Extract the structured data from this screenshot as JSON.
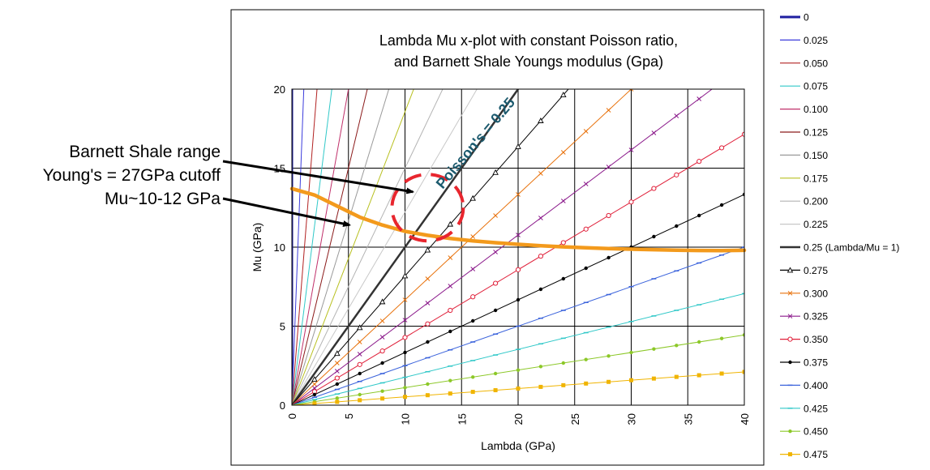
{
  "chart_data": {
    "type": "line",
    "title_lines": [
      "Lambda Mu x-plot with constant Poisson ratio,",
      "and Barnett Shale Youngs modulus (Gpa)"
    ],
    "xlabel": "Lambda (GPa)",
    "ylabel": "Mu (GPa)",
    "xlim": [
      0,
      40
    ],
    "ylim": [
      0,
      20
    ],
    "xticks": [
      0,
      5,
      10,
      15,
      20,
      25,
      30,
      35,
      40
    ],
    "yticks": [
      0,
      5,
      10,
      15,
      20
    ],
    "x_step": 2,
    "grid": true,
    "legend_position": "right",
    "series": [
      {
        "name": "0",
        "poisson": 0.0,
        "color": "#1f1fa0",
        "marker": "none",
        "width": 3
      },
      {
        "name": "0.025",
        "poisson": 0.025,
        "color": "#3c3cdc",
        "marker": "none",
        "width": 1
      },
      {
        "name": "0.050",
        "poisson": 0.05,
        "color": "#b22222",
        "marker": "none",
        "width": 1
      },
      {
        "name": "0.075",
        "poisson": 0.075,
        "color": "#30c8c8",
        "marker": "none",
        "width": 1
      },
      {
        "name": "0.100",
        "poisson": 0.1,
        "color": "#c0306a",
        "marker": "none",
        "width": 1
      },
      {
        "name": "0.125",
        "poisson": 0.125,
        "color": "#8b1a1a",
        "marker": "none",
        "width": 1
      },
      {
        "name": "0.150",
        "poisson": 0.15,
        "color": "#9a9a9a",
        "marker": "none",
        "width": 1
      },
      {
        "name": "0.175",
        "poisson": 0.175,
        "color": "#b8c020",
        "marker": "none",
        "width": 1
      },
      {
        "name": "0.200",
        "poisson": 0.2,
        "color": "#b4b4b4",
        "marker": "none",
        "width": 1
      },
      {
        "name": "0.225",
        "poisson": 0.225,
        "color": "#c8c8c8",
        "marker": "none",
        "width": 1
      },
      {
        "name": "0.25 (Lambda/Mu = 1)",
        "poisson": 0.25,
        "color": "#333333",
        "marker": "none",
        "width": 2.5
      },
      {
        "name": "0.275",
        "poisson": 0.275,
        "color": "#000000",
        "marker": "triangle",
        "width": 1
      },
      {
        "name": "0.300",
        "poisson": 0.3,
        "color": "#e8720c",
        "marker": "x",
        "width": 1
      },
      {
        "name": "0.325",
        "poisson": 0.325,
        "color": "#8b1a8b",
        "marker": "x",
        "width": 1
      },
      {
        "name": "0.350",
        "poisson": 0.35,
        "color": "#e0203a",
        "marker": "circle",
        "width": 1
      },
      {
        "name": "0.375",
        "poisson": 0.375,
        "color": "#000000",
        "marker": "dot",
        "width": 1
      },
      {
        "name": "0.400",
        "poisson": 0.4,
        "color": "#3c64dc",
        "marker": "dash",
        "width": 1
      },
      {
        "name": "0.425",
        "poisson": 0.425,
        "color": "#30c8c8",
        "marker": "dash",
        "width": 1
      },
      {
        "name": "0.450",
        "poisson": 0.45,
        "color": "#8cc828",
        "marker": "dot",
        "width": 1
      },
      {
        "name": "0.475",
        "poisson": 0.475,
        "color": "#f0b400",
        "marker": "square",
        "width": 1
      }
    ],
    "youngs_curve": {
      "color": "#f39a1c",
      "points": [
        [
          0,
          13.7
        ],
        [
          2,
          13.3
        ],
        [
          4,
          12.6
        ],
        [
          6,
          11.9
        ],
        [
          8,
          11.4
        ],
        [
          10,
          11.0
        ],
        [
          12,
          10.75
        ],
        [
          14,
          10.55
        ],
        [
          16,
          10.4
        ],
        [
          18,
          10.28
        ],
        [
          20,
          10.18
        ],
        [
          22,
          10.09
        ],
        [
          24,
          10.02
        ],
        [
          26,
          9.96
        ],
        [
          28,
          9.91
        ],
        [
          30,
          9.87
        ],
        [
          32,
          9.84
        ],
        [
          34,
          9.81
        ],
        [
          36,
          9.79
        ],
        [
          38,
          9.78
        ],
        [
          40,
          9.8
        ]
      ]
    },
    "poisson_label": "Poisson's = 0.25",
    "poisson_label_color": "#1c5a6e",
    "highlight_circle": {
      "x": 12,
      "y": 12.5,
      "color": "#e8262e"
    },
    "annotations": {
      "line1": "Barnett Shale range",
      "line2": "Young's = 27GPa cutoff",
      "line3": "Mu~10-12 GPa"
    },
    "arrow_targets": [
      [
        10.7,
        13.5
      ],
      [
        5.1,
        11.4
      ]
    ]
  }
}
